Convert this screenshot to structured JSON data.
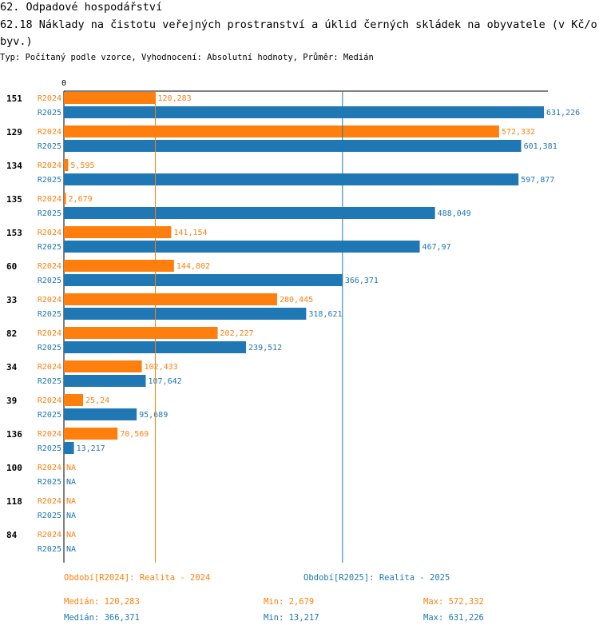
{
  "header": {
    "title1": "62. Odpadové hospodářství",
    "title2": "62.18 Náklady na čistotu veřejných prostranství a úklid černých skládek na obyvatele (v Kč/obyv.)",
    "subtitle": "Typ: Počítaný podle vzorce, Vyhodnocení: Absolutní hodnoty, Průměr: Medián"
  },
  "legend": {
    "period2024": "Období[R2024]: Realita - 2024",
    "period2025": "Období[R2025]: Realita - 2025"
  },
  "stats": {
    "r2024": {
      "median": "Medián: 120,283",
      "min": "Min: 2,679",
      "max": "Max: 572,332"
    },
    "r2025": {
      "median": "Medián: 366,371",
      "min": "Min: 13,217",
      "max": "Max: 631,226"
    }
  },
  "chart_data": {
    "type": "bar",
    "orientation": "horizontal",
    "title": "62.18 Náklady na čistotu veřejných prostranství a úklid černých skládek na obyvatele (v Kč/obyv.)",
    "axis_zero_label": "0",
    "xlim": [
      0,
      631.226
    ],
    "colors": {
      "R2024": "#ff7f0e",
      "R2025": "#1f77b4"
    },
    "median_lines": [
      {
        "series": "R2024",
        "value": 120.283
      },
      {
        "series": "R2025",
        "value": 366.371
      }
    ],
    "categories": [
      "151",
      "129",
      "134",
      "135",
      "153",
      "60",
      "33",
      "82",
      "34",
      "39",
      "136",
      "100",
      "118",
      "84"
    ],
    "series": [
      {
        "name": "R2024",
        "values": [
          120.283,
          572.332,
          5.595,
          2.679,
          141.154,
          144.802,
          280.445,
          202.227,
          102.433,
          25.24,
          70.569,
          null,
          null,
          null
        ],
        "labels": [
          "120,283",
          "572,332",
          "5,595",
          "2,679",
          "141,154",
          "144,802",
          "280,445",
          "202,227",
          "102,433",
          "25,24",
          "70,569",
          "NA",
          "NA",
          "NA"
        ]
      },
      {
        "name": "R2025",
        "values": [
          631.226,
          601.381,
          597.877,
          488.049,
          467.97,
          366.371,
          318.621,
          239.512,
          107.642,
          95.689,
          13.217,
          null,
          null,
          null
        ],
        "labels": [
          "631,226",
          "601,381",
          "597,877",
          "488,049",
          "467,97",
          "366,371",
          "318,621",
          "239,512",
          "107,642",
          "95,689",
          "13,217",
          "NA",
          "NA",
          "NA"
        ]
      }
    ]
  }
}
